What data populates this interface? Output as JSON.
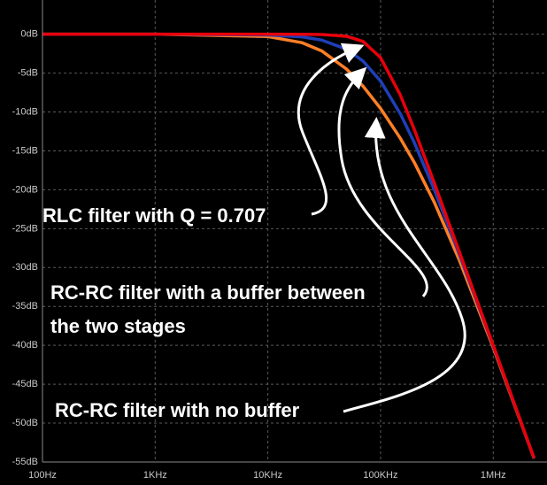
{
  "chart_data": {
    "type": "line",
    "xscale": "log",
    "grid": true,
    "background": "#000000",
    "x": [
      100,
      1000,
      10000,
      20000,
      30000,
      50000,
      70000,
      100000,
      150000,
      200000,
      300000,
      500000,
      1000000,
      2000000,
      2300000
    ],
    "series": [
      {
        "color": "#ff7f27",
        "values": [
          0,
          0,
          -0.29,
          -1.08,
          -2.14,
          -4.49,
          -6.69,
          -9.54,
          -13.39,
          -16.53,
          -21.61,
          -29.04,
          -40.29,
          -52.12,
          -54.53
        ]
      },
      {
        "color": "#1f3fb8",
        "values": [
          0,
          0,
          -0.09,
          -0.34,
          -0.75,
          -1.94,
          -3.46,
          -6.02,
          -10.24,
          -13.98,
          -20,
          -28.3,
          -40.09,
          -52.06,
          -54.49
        ]
      },
      {
        "color": "#e8000b",
        "values": [
          0,
          0,
          0,
          -0.01,
          -0.04,
          -0.26,
          -0.93,
          -3.01,
          -7.83,
          -12.3,
          -19.14,
          -27.97,
          -40,
          -52.04,
          -54.47
        ]
      }
    ],
    "xlim": [
      100,
      3000000
    ],
    "ylim": [
      -55,
      4.4
    ],
    "xticks": [
      {
        "value": 100,
        "label": "100Hz"
      },
      {
        "value": 1000,
        "label": "1KHz"
      },
      {
        "value": 10000,
        "label": "10KHz"
      },
      {
        "value": 100000,
        "label": "100KHz"
      },
      {
        "value": 1000000,
        "label": "1MHz"
      }
    ],
    "yticks": [
      {
        "value": 0,
        "label": "0dB"
      },
      {
        "value": -5,
        "label": "-5dB"
      },
      {
        "value": -10,
        "label": "-10dB"
      },
      {
        "value": -15,
        "label": "-15dB"
      },
      {
        "value": -20,
        "label": "-20dB"
      },
      {
        "value": -25,
        "label": "-25dB"
      },
      {
        "value": -30,
        "label": "-30dB"
      },
      {
        "value": -35,
        "label": "-35dB"
      },
      {
        "value": -40,
        "label": "-40dB"
      },
      {
        "value": -45,
        "label": "-45dB"
      },
      {
        "value": -50,
        "label": "-50dB"
      },
      {
        "value": -55,
        "label": "-55dB"
      }
    ],
    "annotations": [
      [
        "RLC filter with Q = 0.707"
      ],
      [
        "RC-RC filter with a buffer between",
        "the two stages"
      ],
      [
        "RC-RC filter with no buffer"
      ]
    ]
  }
}
